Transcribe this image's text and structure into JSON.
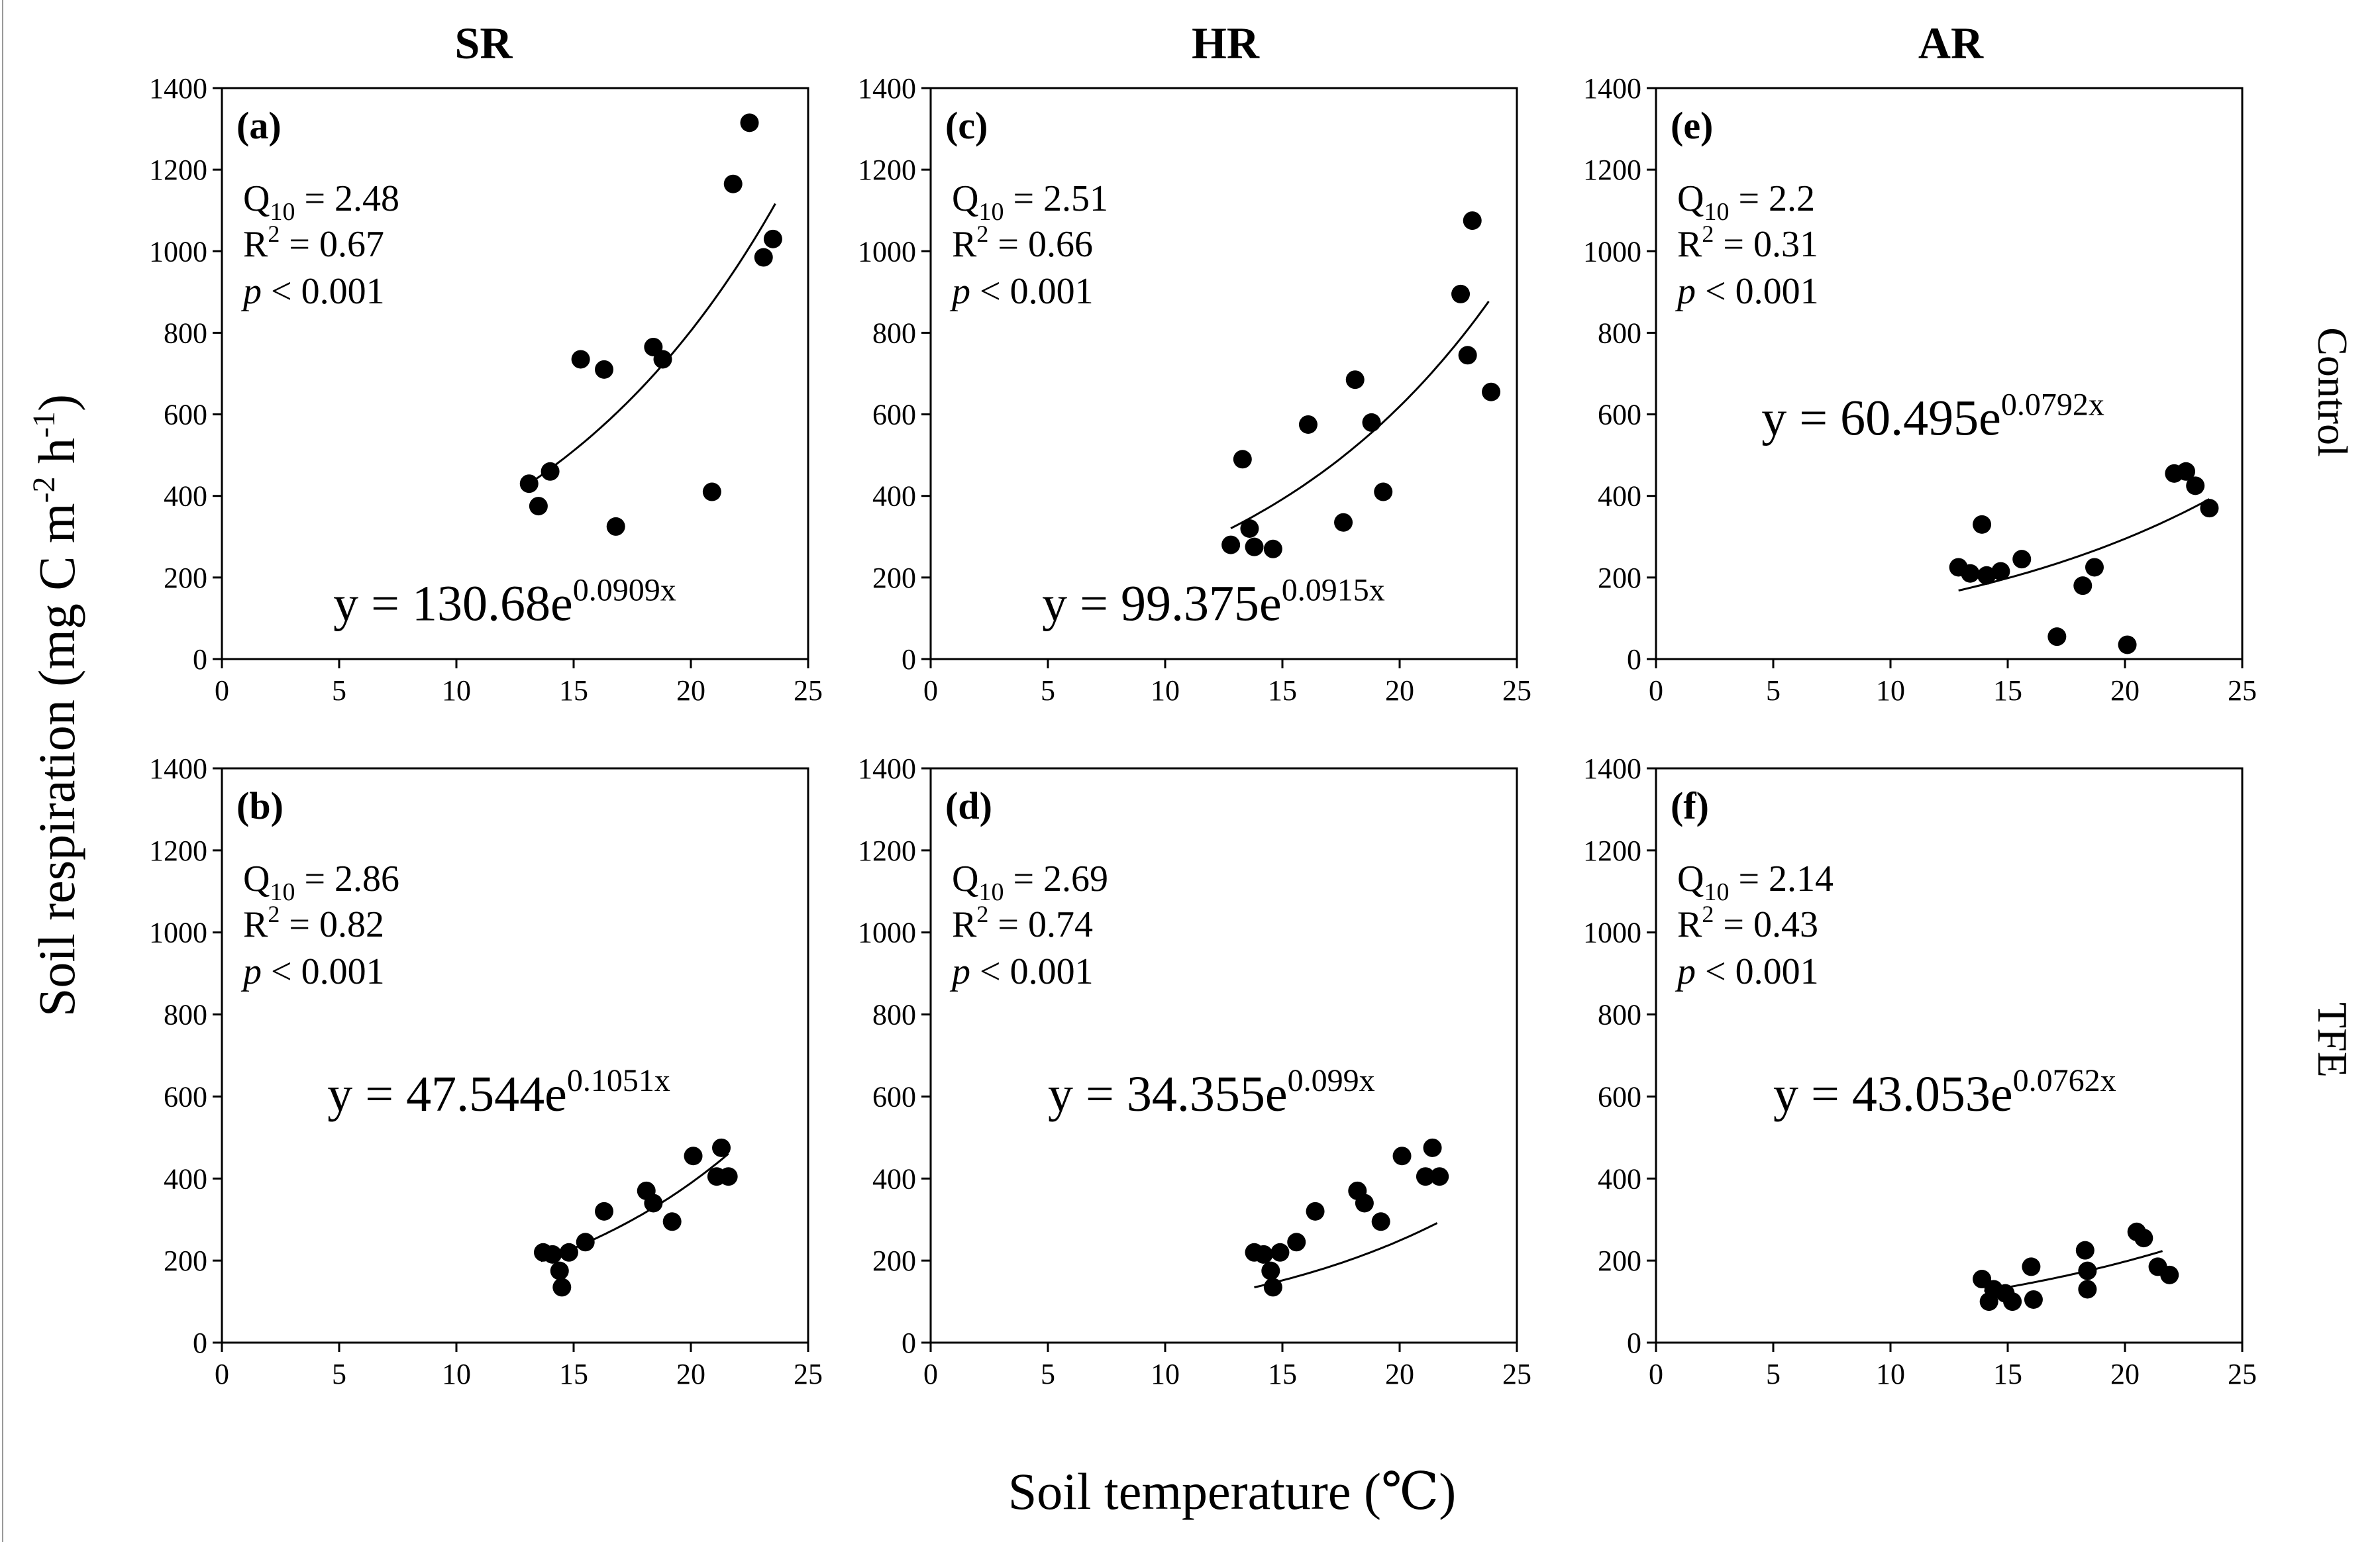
{
  "figure": {
    "y_axis_title": "Soil respiration (mg C m",
    "y_axis_title_sup1": "-2",
    "y_axis_title_mid": " h",
    "y_axis_title_sup2": "-1",
    "y_axis_title_end": ")",
    "x_axis_title": "Soil temperature (℃)",
    "columns": [
      "SR",
      "HR",
      "AR"
    ],
    "rows": [
      "Control",
      "TFE"
    ]
  },
  "chart_data": [
    {
      "type": "scatter",
      "id": "a",
      "panel_label": "(a)",
      "column": "SR",
      "row": "Control",
      "xlim": [
        0,
        25
      ],
      "ylim": [
        0,
        1400
      ],
      "x_ticks": [
        0,
        5,
        10,
        15,
        20,
        25
      ],
      "y_ticks": [
        0,
        200,
        400,
        600,
        800,
        1000,
        1200,
        1400
      ],
      "q10_label": "Q",
      "q10_sub": "10",
      "q10_value": " = 2.48",
      "r2_label": "R",
      "r2_sup": "2",
      "r2_value": " = 0.67",
      "p_label": "p",
      "p_value": " < 0.001",
      "equation_base": "y = 130.68e",
      "equation_exp": "0.0909x",
      "fit": {
        "a": 130.68,
        "b": 0.0909,
        "x_range": [
          13.0,
          23.6
        ]
      },
      "points": [
        [
          13.1,
          430
        ],
        [
          13.5,
          375
        ],
        [
          14.0,
          460
        ],
        [
          15.3,
          735
        ],
        [
          16.3,
          710
        ],
        [
          16.8,
          325
        ],
        [
          18.4,
          765
        ],
        [
          18.8,
          735
        ],
        [
          20.9,
          410
        ],
        [
          21.8,
          1165
        ],
        [
          22.5,
          1315
        ],
        [
          23.1,
          985
        ],
        [
          23.5,
          1030
        ]
      ]
    },
    {
      "type": "scatter",
      "id": "c",
      "panel_label": "(c)",
      "column": "HR",
      "row": "Control",
      "xlim": [
        0,
        25
      ],
      "ylim": [
        0,
        1400
      ],
      "x_ticks": [
        0,
        5,
        10,
        15,
        20,
        25
      ],
      "y_ticks": [
        0,
        200,
        400,
        600,
        800,
        1000,
        1200,
        1400
      ],
      "q10_label": "Q",
      "q10_sub": "10",
      "q10_value": " = 2.51",
      "r2_label": "R",
      "r2_sup": "2",
      "r2_value": " = 0.66",
      "p_label": "p",
      "p_value": " < 0.001",
      "equation_base": "y = 99.375e",
      "equation_exp": "0.0915x",
      "fit": {
        "a": 99.375,
        "b": 0.0915,
        "x_range": [
          12.8,
          23.8
        ]
      },
      "points": [
        [
          12.8,
          280
        ],
        [
          13.3,
          490
        ],
        [
          13.6,
          320
        ],
        [
          13.8,
          275
        ],
        [
          14.6,
          270
        ],
        [
          16.1,
          575
        ],
        [
          17.6,
          335
        ],
        [
          18.1,
          685
        ],
        [
          18.8,
          580
        ],
        [
          19.3,
          410
        ],
        [
          22.6,
          895
        ],
        [
          22.9,
          745
        ],
        [
          23.1,
          1075
        ],
        [
          23.9,
          655
        ]
      ]
    },
    {
      "type": "scatter",
      "id": "e",
      "panel_label": "(e)",
      "column": "AR",
      "row": "Control",
      "xlim": [
        0,
        25
      ],
      "ylim": [
        0,
        1400
      ],
      "x_ticks": [
        0,
        5,
        10,
        15,
        20,
        25
      ],
      "y_ticks": [
        0,
        200,
        400,
        600,
        800,
        1000,
        1200,
        1400
      ],
      "q10_label": "Q",
      "q10_sub": "10",
      "q10_value": " = 2.2",
      "r2_label": "R",
      "r2_sup": "2",
      "r2_value": " = 0.31",
      "p_label": "p",
      "p_value": " < 0.001",
      "equation_base": "y = 60.495e",
      "equation_exp": "0.0792x",
      "fit": {
        "a": 60.495,
        "b": 0.0792,
        "x_range": [
          12.9,
          23.6
        ]
      },
      "points": [
        [
          12.9,
          225
        ],
        [
          13.4,
          210
        ],
        [
          13.9,
          330
        ],
        [
          14.1,
          205
        ],
        [
          14.7,
          215
        ],
        [
          15.6,
          245
        ],
        [
          17.1,
          55
        ],
        [
          18.2,
          180
        ],
        [
          18.7,
          225
        ],
        [
          20.1,
          35
        ],
        [
          22.1,
          455
        ],
        [
          22.6,
          460
        ],
        [
          23.0,
          425
        ],
        [
          23.6,
          370
        ]
      ]
    },
    {
      "type": "scatter",
      "id": "b",
      "panel_label": "(b)",
      "column": "SR",
      "row": "TFE",
      "xlim": [
        0,
        25
      ],
      "ylim": [
        0,
        1400
      ],
      "x_ticks": [
        0,
        5,
        10,
        15,
        20,
        25
      ],
      "y_ticks": [
        0,
        200,
        400,
        600,
        800,
        1000,
        1200,
        1400
      ],
      "q10_label": "Q",
      "q10_sub": "10",
      "q10_value": " = 2.86",
      "r2_label": "R",
      "r2_sup": "2",
      "r2_value": " = 0.82",
      "p_label": "p",
      "p_value": " < 0.001",
      "equation_base": "y = 47.544e",
      "equation_exp": "0.1051x",
      "fit": {
        "a": 47.544,
        "b": 0.1051,
        "x_range": [
          13.6,
          21.6
        ]
      },
      "points": [
        [
          13.7,
          220
        ],
        [
          14.1,
          215
        ],
        [
          14.4,
          175
        ],
        [
          14.5,
          135
        ],
        [
          14.8,
          220
        ],
        [
          15.5,
          245
        ],
        [
          16.3,
          320
        ],
        [
          18.1,
          370
        ],
        [
          18.4,
          340
        ],
        [
          19.2,
          295
        ],
        [
          20.1,
          455
        ],
        [
          21.1,
          405
        ],
        [
          21.3,
          475
        ],
        [
          21.6,
          405
        ]
      ]
    },
    {
      "type": "scatter",
      "id": "d",
      "panel_label": "(d)",
      "column": "HR",
      "row": "TFE",
      "xlim": [
        0,
        25
      ],
      "ylim": [
        0,
        1400
      ],
      "x_ticks": [
        0,
        5,
        10,
        15,
        20,
        25
      ],
      "y_ticks": [
        0,
        200,
        400,
        600,
        800,
        1000,
        1200,
        1400
      ],
      "q10_label": "Q",
      "q10_sub": "10",
      "q10_value": " = 2.69",
      "r2_label": "R",
      "r2_sup": "2",
      "r2_value": " = 0.74",
      "p_label": "p",
      "p_value": " < 0.001",
      "equation_base": "y = 34.355e",
      "equation_exp": "0.099x",
      "fit": {
        "a": 34.355,
        "b": 0.099,
        "x_range": [
          13.8,
          21.6
        ]
      },
      "points": [
        [
          13.8,
          220
        ],
        [
          14.2,
          215
        ],
        [
          14.5,
          175
        ],
        [
          14.6,
          135
        ],
        [
          14.9,
          220
        ],
        [
          15.6,
          245
        ],
        [
          16.4,
          320
        ],
        [
          18.2,
          370
        ],
        [
          18.5,
          340
        ],
        [
          19.2,
          295
        ],
        [
          20.1,
          455
        ],
        [
          21.1,
          405
        ],
        [
          21.4,
          475
        ],
        [
          21.7,
          405
        ]
      ]
    },
    {
      "type": "scatter",
      "id": "f",
      "panel_label": "(f)",
      "column": "AR",
      "row": "TFE",
      "xlim": [
        0,
        25
      ],
      "ylim": [
        0,
        1400
      ],
      "x_ticks": [
        0,
        5,
        10,
        15,
        20,
        25
      ],
      "y_ticks": [
        0,
        200,
        400,
        600,
        800,
        1000,
        1200,
        1400
      ],
      "q10_label": "Q",
      "q10_sub": "10",
      "q10_value": " = 2.14",
      "r2_label": "R",
      "r2_sup": "2",
      "r2_value": " = 0.43",
      "p_label": "p",
      "p_value": " < 0.001",
      "equation_base": "y = 43.053e",
      "equation_exp": "0.0762x",
      "fit": {
        "a": 43.053,
        "b": 0.0762,
        "x_range": [
          14.0,
          21.6
        ]
      },
      "points": [
        [
          13.9,
          155
        ],
        [
          14.2,
          100
        ],
        [
          14.4,
          130
        ],
        [
          14.9,
          120
        ],
        [
          15.2,
          100
        ],
        [
          16.0,
          185
        ],
        [
          16.1,
          105
        ],
        [
          18.3,
          225
        ],
        [
          18.4,
          130
        ],
        [
          18.4,
          175
        ],
        [
          20.5,
          270
        ],
        [
          20.8,
          255
        ],
        [
          21.4,
          185
        ],
        [
          21.9,
          165
        ]
      ]
    }
  ]
}
